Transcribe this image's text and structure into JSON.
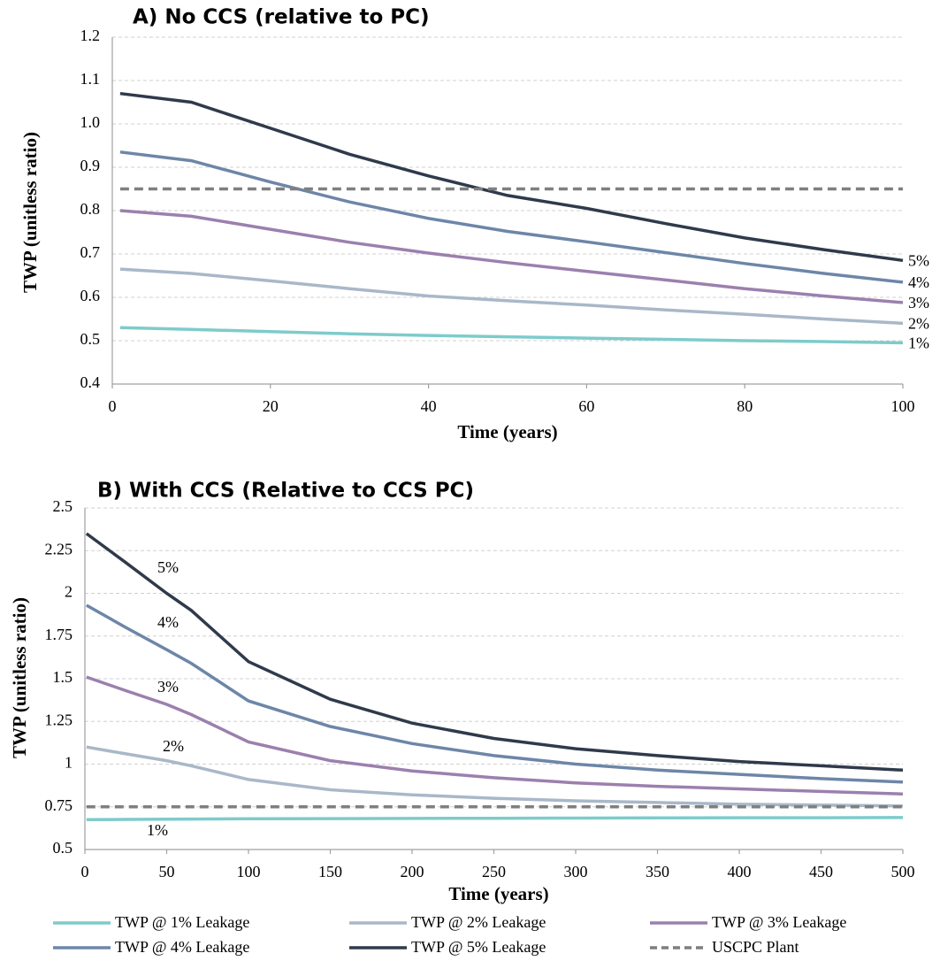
{
  "chart_data": [
    {
      "type": "line",
      "title": "A) No CCS (relative to PC)",
      "x_label": "Time (years)",
      "y_label": "TWP (unitless ratio)",
      "x": [
        1,
        10,
        20,
        30,
        40,
        50,
        60,
        70,
        80,
        90,
        100
      ],
      "xlim": [
        0,
        100
      ],
      "xticks": [
        0,
        20,
        40,
        60,
        80,
        100
      ],
      "ylim": [
        0.4,
        1.2
      ],
      "yticks": [
        0.4,
        0.5,
        0.6,
        0.7,
        0.8,
        0.9,
        {
          "value": 1,
          "label": "1.0"
        },
        1.1,
        1.2
      ],
      "grid": true,
      "series": [
        {
          "label": "1%",
          "color": "#7ecbcb",
          "values": [
            0.53,
            0.526,
            0.521,
            0.516,
            0.512,
            0.509,
            0.506,
            0.503,
            0.5,
            0.498,
            0.495
          ]
        },
        {
          "label": "2%",
          "color": "#a9b8c8",
          "values": [
            0.665,
            0.655,
            0.638,
            0.62,
            0.603,
            0.592,
            0.582,
            0.571,
            0.561,
            0.55,
            0.54
          ]
        },
        {
          "label": "3%",
          "color": "#9b80ae",
          "values": [
            0.8,
            0.787,
            0.757,
            0.727,
            0.702,
            0.68,
            0.66,
            0.64,
            0.62,
            0.603,
            0.588
          ]
        },
        {
          "label": "4%",
          "color": "#6d86a8",
          "values": [
            0.935,
            0.915,
            0.866,
            0.82,
            0.782,
            0.752,
            0.728,
            0.703,
            0.678,
            0.655,
            0.635
          ]
        },
        {
          "label": "5%",
          "color": "#2f3a4b",
          "values": [
            1.07,
            1.05,
            0.99,
            0.93,
            0.88,
            0.835,
            0.805,
            0.77,
            0.737,
            0.71,
            0.685
          ]
        },
        {
          "color": "#7f7f7f",
          "dashed": true,
          "values": [
            0.85,
            0.85,
            0.85,
            0.85,
            0.85,
            0.85,
            0.85,
            0.85,
            0.85,
            0.85,
            0.85
          ]
        }
      ]
    },
    {
      "type": "line",
      "title": "B) With CCS (Relative to CCS PC)",
      "x_label": "Time (years)",
      "y_label": "TWP (unitless ratio)",
      "x": [
        1,
        25,
        50,
        65,
        100,
        150,
        200,
        250,
        300,
        350,
        400,
        450,
        500
      ],
      "xlim": [
        0,
        500
      ],
      "xticks": [
        0,
        50,
        100,
        150,
        200,
        250,
        300,
        350,
        400,
        450,
        500
      ],
      "ylim": [
        0.5,
        2.5
      ],
      "yticks": [
        0.5,
        0.75,
        1,
        1.25,
        1.5,
        1.75,
        2,
        2.25,
        2.5
      ],
      "grid": true,
      "series": [
        {
          "name": "TWP @ 1% Leakage",
          "label": "1%",
          "color": "#7ecbcb",
          "values": [
            0.675,
            0.676,
            0.677,
            0.678,
            0.68,
            0.681,
            0.682,
            0.683,
            0.684,
            0.685,
            0.686,
            0.686,
            0.687
          ]
        },
        {
          "name": "TWP @ 2% Leakage",
          "label": "2%",
          "color": "#a9b8c8",
          "values": [
            1.1,
            1.06,
            1.02,
            0.99,
            0.91,
            0.85,
            0.82,
            0.8,
            0.785,
            0.775,
            0.765,
            0.76,
            0.755
          ]
        },
        {
          "name": "TWP @ 3% Leakage",
          "label": "3%",
          "color": "#9b80ae",
          "values": [
            1.51,
            1.43,
            1.35,
            1.29,
            1.13,
            1.02,
            0.96,
            0.92,
            0.89,
            0.87,
            0.855,
            0.84,
            0.825
          ]
        },
        {
          "name": "TWP @ 4% Leakage",
          "label": "4%",
          "color": "#6d86a8",
          "values": [
            1.93,
            1.8,
            1.67,
            1.59,
            1.37,
            1.22,
            1.12,
            1.05,
            1.0,
            0.965,
            0.94,
            0.915,
            0.895
          ]
        },
        {
          "name": "TWP @ 5% Leakage",
          "label": "5%",
          "color": "#2f3a4b",
          "values": [
            2.35,
            2.18,
            2.0,
            1.9,
            1.6,
            1.38,
            1.24,
            1.15,
            1.09,
            1.05,
            1.015,
            0.99,
            0.965
          ]
        },
        {
          "name": "USCPC Plant",
          "color": "#7f7f7f",
          "dashed": true,
          "values": [
            0.75,
            0.75,
            0.75,
            0.75,
            0.75,
            0.75,
            0.75,
            0.75,
            0.75,
            0.75,
            0.75,
            0.75,
            0.75
          ]
        }
      ]
    }
  ]
}
